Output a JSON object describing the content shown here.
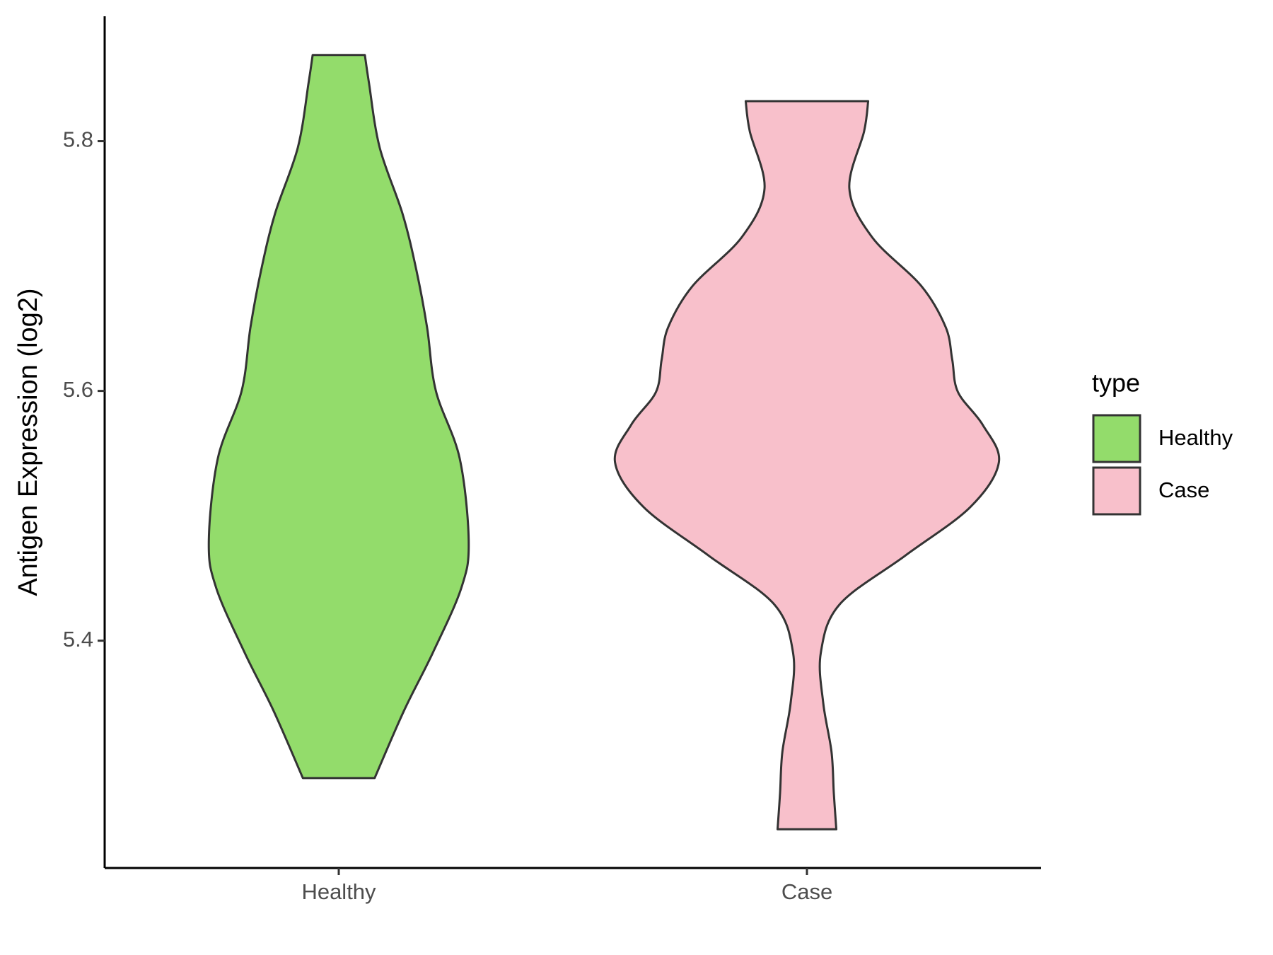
{
  "chart_data": {
    "type": "violin",
    "y_label": "Antigen Expression (log2)",
    "categories": [
      "Healthy",
      "Case"
    ],
    "ylim": [
      5.218,
      5.9
    ],
    "yticks": [
      5.4,
      5.6,
      5.8
    ],
    "grid": false,
    "legend": {
      "title": "type",
      "position": "right"
    },
    "outline_color": "#333333",
    "series": [
      {
        "name": "Healthy",
        "color": "#93dc6b",
        "y": [
          5.869,
          5.847,
          5.795,
          5.742,
          5.697,
          5.651,
          5.6,
          5.546,
          5.479,
          5.442,
          5.39,
          5.344,
          5.29
        ],
        "density": [
          0.136,
          0.157,
          0.213,
          0.332,
          0.404,
          0.46,
          0.506,
          0.63,
          0.677,
          0.638,
          0.489,
          0.34,
          0.187
        ]
      },
      {
        "name": "Case",
        "color": "#f8c0cb",
        "y": [
          5.832,
          5.808,
          5.762,
          5.723,
          5.684,
          5.651,
          5.625,
          5.599,
          5.573,
          5.543,
          5.507,
          5.468,
          5.429,
          5.39,
          5.35,
          5.311,
          5.278,
          5.249
        ],
        "density": [
          0.319,
          0.298,
          0.221,
          0.34,
          0.596,
          0.723,
          0.757,
          0.787,
          0.915,
          1.0,
          0.851,
          0.511,
          0.17,
          0.072,
          0.085,
          0.128,
          0.14,
          0.153
        ]
      }
    ]
  }
}
